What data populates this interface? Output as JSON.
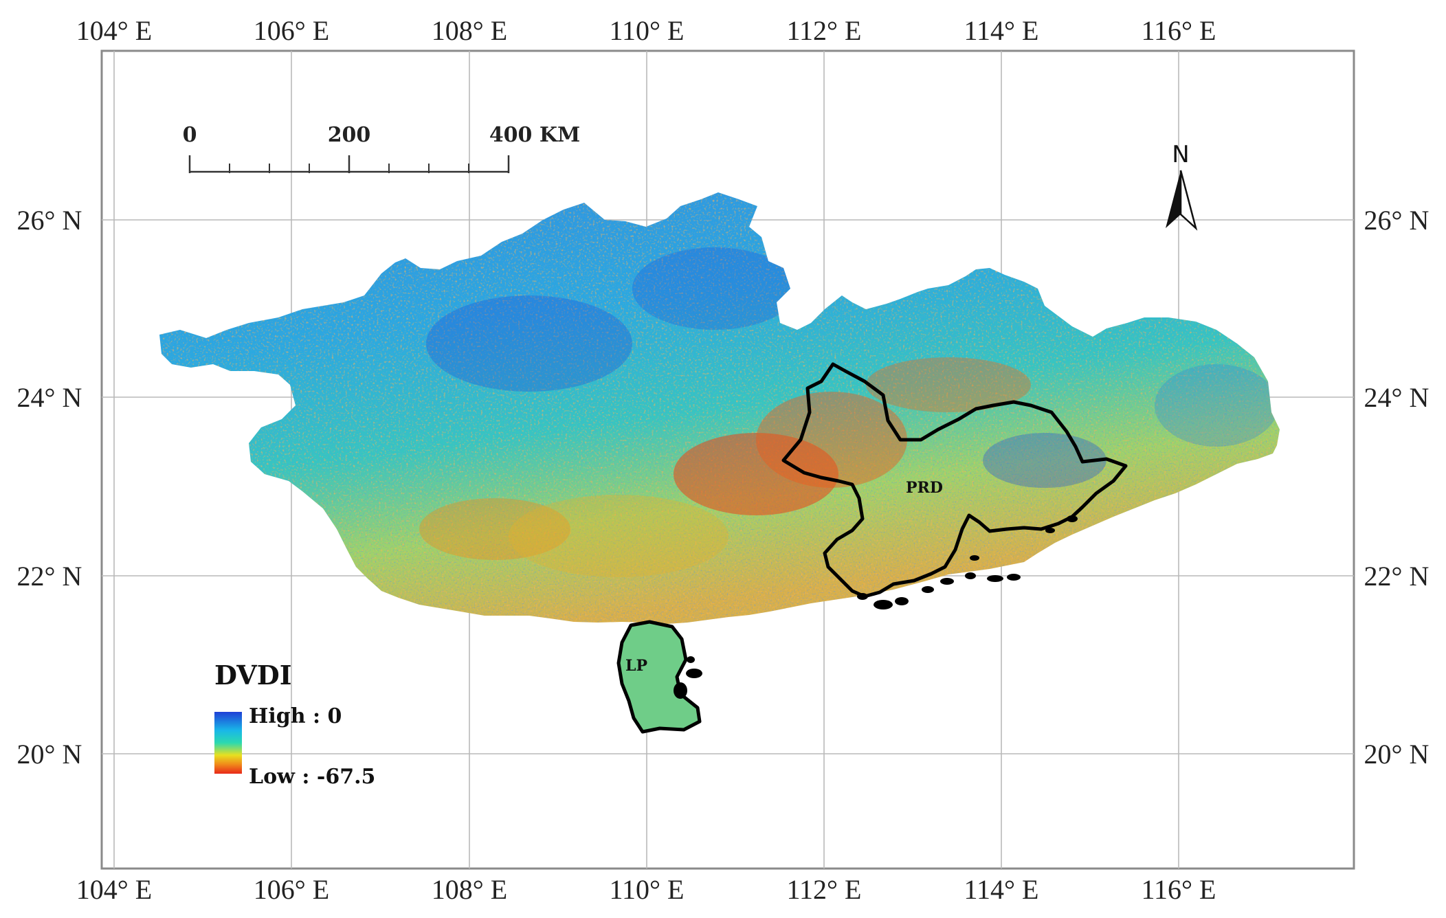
{
  "map": {
    "lon_labels": [
      "104° E",
      "106° E",
      "108° E",
      "110° E",
      "112° E",
      "114° E",
      "116° E"
    ],
    "lat_labels": [
      "26° N",
      "24° N",
      "22° N",
      "20° N"
    ]
  },
  "scale_bar": {
    "labels": [
      "0",
      "200",
      "400 KM"
    ]
  },
  "north_arrow": {
    "label": "N"
  },
  "legend": {
    "title": "DVDI",
    "high_label": "High : 0",
    "low_label": "Low : -67.5",
    "colors": [
      "#1f3fd6",
      "#19b7e8",
      "#2bd9b0",
      "#e8e020",
      "#f08a1a",
      "#e8281a"
    ]
  },
  "regions": {
    "prd": "PRD",
    "lp": "LP"
  }
}
